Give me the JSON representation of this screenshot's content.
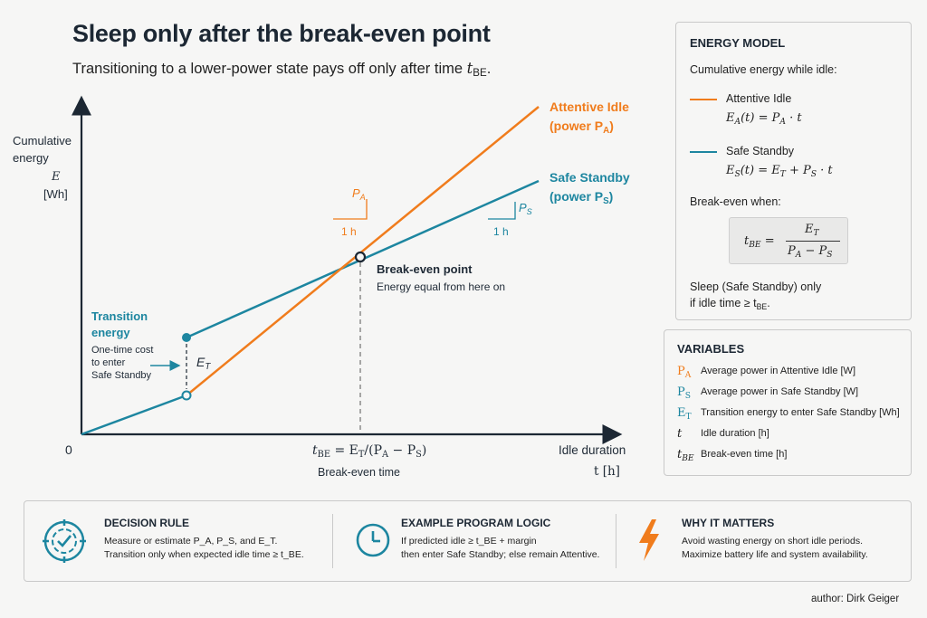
{
  "title": "Sleep only after the break-even point",
  "subtitle": "Transitioning to a lower-power state pays off only after time",
  "subtitle_var": "t",
  "subtitle_sub": "BE",
  "subtitle_end": ".",
  "chart": {
    "y_label_line1": "Cumulative",
    "y_label_line2": "energy",
    "y_label_var": "E",
    "y_label_unit": "[Wh]",
    "x_label": "Idle duration",
    "x_label_unit": "t [h]",
    "origin": "0",
    "attentive_label_1": "Attentive Idle",
    "attentive_label_2": "(power P",
    "attentive_label_2_sub": "A",
    "safe_label_1": "Safe Standby",
    "safe_label_2": "(power P",
    "safe_label_2_sub": "S",
    "slope_a_label": "P",
    "slope_a_sub": "A",
    "slope_a_run": "1 h",
    "slope_s_label": "P",
    "slope_s_sub": "S",
    "slope_s_run": "1 h",
    "break_even_title": "Break-even point",
    "break_even_desc": "Energy equal from here on",
    "transition_title_1": "Transition",
    "transition_title_2": "energy",
    "transition_desc_1": "One-time cost",
    "transition_desc_2": "to enter",
    "transition_desc_3": "Safe Standby",
    "et_label": "E",
    "et_sub": "T",
    "tbe_formula": "t",
    "tbe_formula_sub": "BE",
    "tbe_formula_rest": " = E",
    "tbe_formula_rest_sub": "T",
    "tbe_formula_tail": "/(P",
    "tbe_formula_tail_sub1": "A",
    "tbe_formula_mid": " − P",
    "tbe_formula_tail_sub2": "S",
    "tbe_formula_close": ")",
    "tbe_caption": "Break-even time",
    "colors": {
      "attentive": "#f07c1c",
      "safe": "#1d86a0",
      "axis": "#1c2733"
    }
  },
  "energy_model": {
    "heading": "ENERGY MODEL",
    "intro": "Cumulative energy while idle:",
    "attentive_name": "Attentive Idle",
    "attentive_eq": "E_A(t) = P_A · t",
    "safe_name": "Safe Standby",
    "safe_eq": "E_S(t) = E_T + P_S · t",
    "break_even_when": "Break-even when:",
    "formula_lhs": "t",
    "formula_lhs_sub": "BE",
    "formula_num": "E",
    "formula_num_sub": "T",
    "formula_den": "P_A − P_S",
    "sleep_line1": "Sleep (Safe Standby) only",
    "sleep_line2": "if idle time ≥ t",
    "sleep_line2_sub": "BE",
    "sleep_line2_end": "."
  },
  "variables": {
    "heading": "VARIABLES",
    "items": [
      {
        "sym": "P",
        "sub": "A",
        "color": "#f07c1c",
        "desc": "Average power in Attentive Idle [W]"
      },
      {
        "sym": "P",
        "sub": "S",
        "color": "#1d86a0",
        "desc": "Average power in Safe Standby [W]"
      },
      {
        "sym": "E",
        "sub": "T",
        "color": "#1d86a0",
        "desc": "Transition energy to enter Safe Standby [Wh]"
      },
      {
        "sym": "t",
        "sub": "",
        "color": "#222222",
        "desc": "Idle duration [h]"
      },
      {
        "sym": "t",
        "sub": "BE",
        "color": "#222222",
        "desc": "Break-even time [h]"
      }
    ]
  },
  "bottom": {
    "decision": {
      "heading": "DECISION RULE",
      "line1": "Measure or estimate P_A, P_S, and E_T.",
      "line2": "Transition only when expected idle time ≥ t_BE."
    },
    "logic": {
      "heading": "EXAMPLE PROGRAM LOGIC",
      "line1": "If predicted idle ≥ t_BE + margin",
      "line2": "then enter Safe Standby; else remain Attentive."
    },
    "why": {
      "heading": "WHY IT MATTERS",
      "line1": "Avoid wasting energy on short idle periods.",
      "line2": "Maximize battery life and system availability."
    }
  },
  "author": "author: Dirk Geiger"
}
